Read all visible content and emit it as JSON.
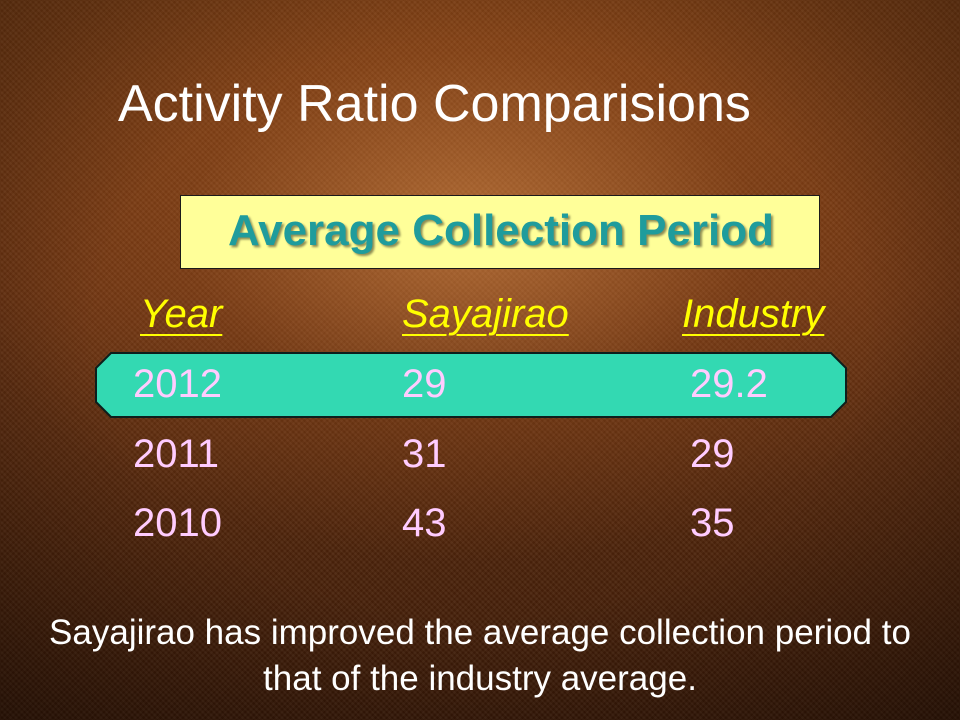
{
  "slide": {
    "title": "Activity Ratio Comparisions",
    "subtitle": "Average Collection Period",
    "table": {
      "headers": [
        "Year",
        "Sayajirao",
        "Industry"
      ],
      "rows": [
        [
          "2012",
          "29",
          "29.2"
        ],
        [
          "2011",
          "31",
          "29"
        ],
        [
          "2010",
          "43",
          "35"
        ]
      ]
    },
    "note": "Sayajirao has improved the average collection period to that of the industry average."
  },
  "colors": {
    "title": "#ffffff",
    "subtitle_bg": "#ffff99",
    "subtitle_text": "#1f9c9c",
    "header": "#ffff00",
    "cell": "#ffccff",
    "highlight": "#33d9b2"
  }
}
